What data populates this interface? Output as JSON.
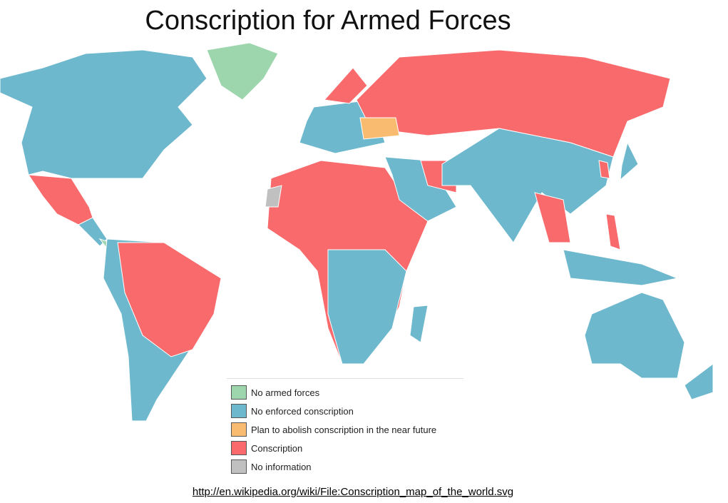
{
  "title": "Conscription for Armed Forces",
  "legend": {
    "items": [
      {
        "label": "No armed forces",
        "color": "#9dd5ad"
      },
      {
        "label": "No enforced conscription",
        "color": "#6db8cd"
      },
      {
        "label": "Plan to abolish conscription in the near future",
        "color": "#f9bb70"
      },
      {
        "label": "Conscription",
        "color": "#f86a6c"
      },
      {
        "label": "No information",
        "color": "#c0c0c0"
      }
    ]
  },
  "source": "http://en.wikipedia.org/wiki/File:Conscription_map_of_the_world.svg"
}
